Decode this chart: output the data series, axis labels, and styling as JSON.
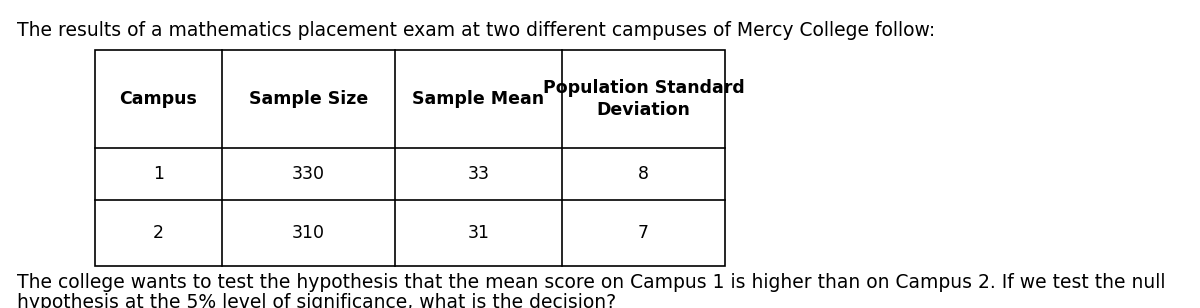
{
  "intro_text": "The results of a mathematics placement exam at two different campuses of Mercy College follow:",
  "rows": [
    [
      "1",
      "330",
      "33",
      "8"
    ],
    [
      "2",
      "310",
      "31",
      "7"
    ]
  ],
  "footer_line1": "The college wants to test the hypothesis that the mean score on Campus 1 is higher than on Campus 2. If we test the null",
  "footer_line2": "hypothesis at the 5% level of significance, what is the decision?",
  "bg_color": "#ffffff",
  "text_color": "#000000",
  "table_font": "Courier New",
  "body_font": "DejaVu Sans",
  "intro_fontsize": 13.5,
  "header_fontsize": 12.5,
  "cell_fontsize": 12.5,
  "footer_fontsize": 13.5,
  "fig_width": 12.0,
  "fig_height": 3.08,
  "dpi": 100
}
